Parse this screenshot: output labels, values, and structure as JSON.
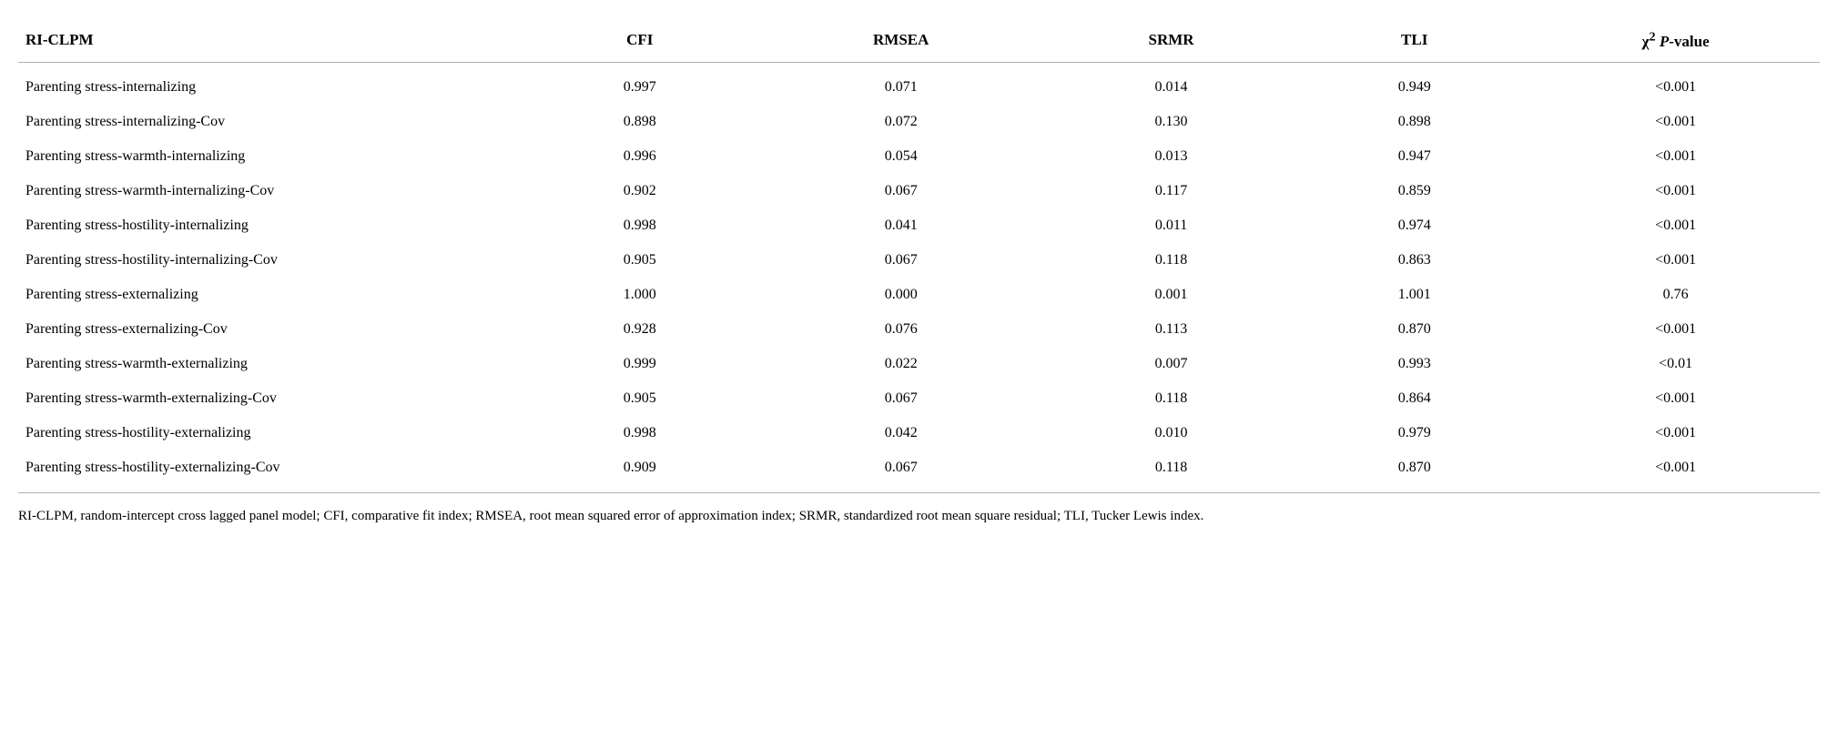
{
  "table": {
    "columns": [
      "RI-CLPM",
      "CFI",
      "RMSEA",
      "SRMR",
      "TLI",
      "χ² P-value"
    ],
    "rows": [
      [
        "Parenting stress-internalizing",
        "0.997",
        "0.071",
        "0.014",
        "0.949",
        "<0.001"
      ],
      [
        "Parenting stress-internalizing-Cov",
        "0.898",
        "0.072",
        "0.130",
        "0.898",
        "<0.001"
      ],
      [
        "Parenting stress-warmth-internalizing",
        "0.996",
        "0.054",
        "0.013",
        "0.947",
        "<0.001"
      ],
      [
        "Parenting stress-warmth-internalizing-Cov",
        "0.902",
        "0.067",
        "0.117",
        "0.859",
        "<0.001"
      ],
      [
        "Parenting stress-hostility-internalizing",
        "0.998",
        "0.041",
        "0.011",
        "0.974",
        "<0.001"
      ],
      [
        "Parenting stress-hostility-internalizing-Cov",
        "0.905",
        "0.067",
        "0.118",
        "0.863",
        "<0.001"
      ],
      [
        "Parenting stress-externalizing",
        "1.000",
        "0.000",
        "0.001",
        "1.001",
        "0.76"
      ],
      [
        "Parenting stress-externalizing-Cov",
        "0.928",
        "0.076",
        "0.113",
        "0.870",
        "<0.001"
      ],
      [
        "Parenting stress-warmth-externalizing",
        "0.999",
        "0.022",
        "0.007",
        "0.993",
        "<0.01"
      ],
      [
        "Parenting stress-warmth-externalizing-Cov",
        "0.905",
        "0.067",
        "0.118",
        "0.864",
        "<0.001"
      ],
      [
        "Parenting stress-hostility-externalizing",
        "0.998",
        "0.042",
        "0.010",
        "0.979",
        "<0.001"
      ],
      [
        "Parenting stress-hostility-externalizing-Cov",
        "0.909",
        "0.067",
        "0.118",
        "0.870",
        "<0.001"
      ]
    ]
  },
  "footnote": "RI-CLPM, random-intercept cross lagged panel model; CFI, comparative fit index; RMSEA, root mean squared error of approximation index; SRMR, standardized root mean square residual; TLI, Tucker Lewis index.",
  "column_widths": [
    "28%",
    "13%",
    "16%",
    "14%",
    "13%",
    "16%"
  ]
}
